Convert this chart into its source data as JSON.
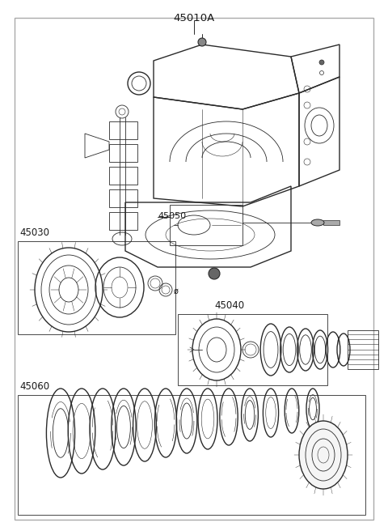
{
  "bg_color": "#ffffff",
  "border_color": "#999999",
  "line_color": "#2a2a2a",
  "label_color": "#1a1a1a",
  "label_fontsize": 8.5,
  "figsize": [
    4.8,
    6.56
  ],
  "dpi": 100
}
